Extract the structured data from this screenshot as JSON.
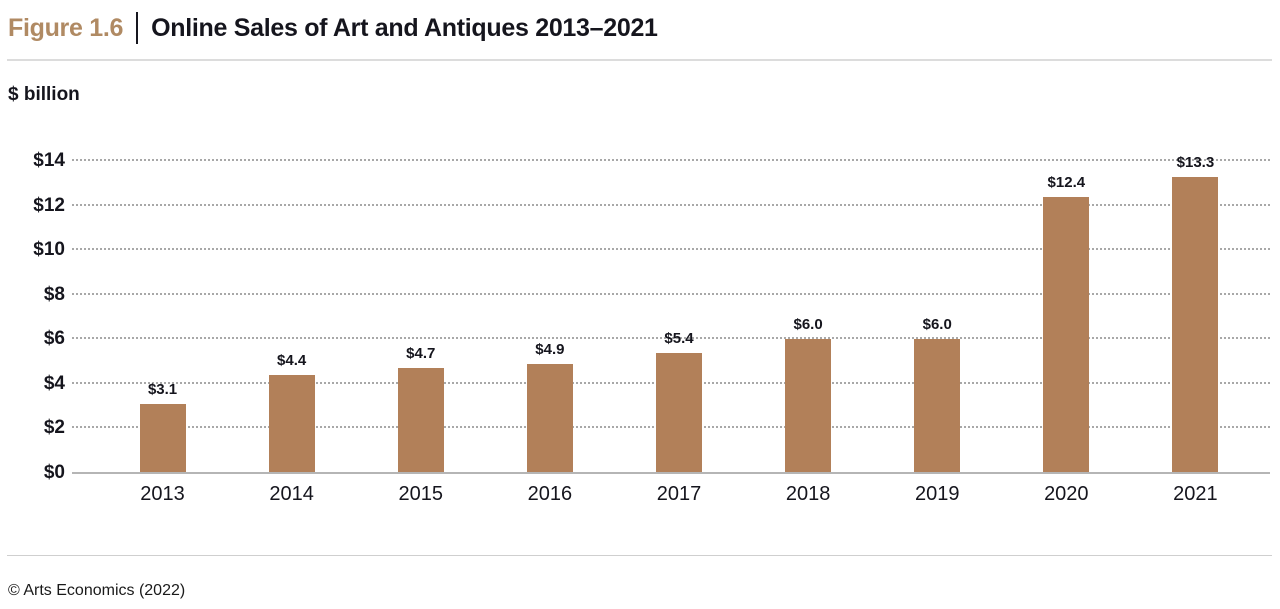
{
  "header": {
    "figure_label": "Figure 1.6",
    "title": "Online Sales of Art and Antiques 2013–2021"
  },
  "axis_title": "$ billion",
  "footer": {
    "credit": "© Arts Economics (2022)"
  },
  "colors": {
    "bar": "#b28059",
    "figure_label_accent": "#b08a63",
    "text": "#15151d",
    "gridline": "#a8a8a8",
    "axis_line": "#b5b5b5",
    "divider_rule": "#dcdcdc"
  },
  "chart_data": {
    "type": "bar",
    "title": "Online Sales of Art and Antiques 2013–2021",
    "xlabel": "",
    "ylabel": "$ billion",
    "categories": [
      "2013",
      "2014",
      "2015",
      "2016",
      "2017",
      "2018",
      "2019",
      "2020",
      "2021"
    ],
    "values": [
      3.1,
      4.4,
      4.7,
      4.9,
      5.4,
      6.0,
      6.0,
      12.4,
      13.3
    ],
    "value_labels": [
      "$3.1",
      "$4.4",
      "$4.7",
      "$4.9",
      "$5.4",
      "$6.0",
      "$6.0",
      "$12.4",
      "$13.3"
    ],
    "ylim": [
      0,
      14
    ],
    "yticks": [
      {
        "value": 0,
        "label": "$0"
      },
      {
        "value": 2,
        "label": "$2"
      },
      {
        "value": 4,
        "label": "$4"
      },
      {
        "value": 6,
        "label": "$6"
      },
      {
        "value": 8,
        "label": "$8"
      },
      {
        "value": 10,
        "label": "$10"
      },
      {
        "value": 12,
        "label": "$12"
      },
      {
        "value": 14,
        "label": "$14"
      }
    ],
    "grid": "horizontal-dotted",
    "legend": "none"
  }
}
